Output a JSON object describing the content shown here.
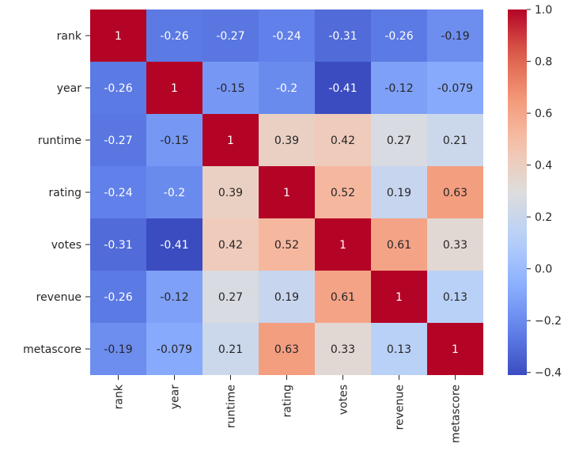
{
  "chart_data": {
    "type": "heatmap",
    "title": "",
    "xlabel": "",
    "ylabel": "",
    "labels": [
      "rank",
      "year",
      "runtime",
      "rating",
      "votes",
      "revenue",
      "metascore"
    ],
    "matrix": [
      [
        1,
        -0.26,
        -0.27,
        -0.24,
        -0.31,
        -0.26,
        -0.19
      ],
      [
        -0.26,
        1,
        -0.15,
        -0.2,
        -0.41,
        -0.12,
        -0.079
      ],
      [
        -0.27,
        -0.15,
        1,
        0.39,
        0.42,
        0.27,
        0.21
      ],
      [
        -0.24,
        -0.2,
        0.39,
        1,
        0.52,
        0.19,
        0.63
      ],
      [
        -0.31,
        -0.41,
        0.42,
        0.52,
        1,
        0.61,
        0.33
      ],
      [
        -0.26,
        -0.12,
        0.27,
        0.19,
        0.61,
        1,
        0.13
      ],
      [
        -0.19,
        -0.079,
        0.21,
        0.63,
        0.33,
        0.13,
        1
      ]
    ],
    "cell_labels": [
      [
        "1",
        "-0.26",
        "-0.27",
        "-0.24",
        "-0.31",
        "-0.26",
        "-0.19"
      ],
      [
        "-0.26",
        "1",
        "-0.15",
        "-0.2",
        "-0.41",
        "-0.12",
        "-0.079"
      ],
      [
        "-0.27",
        "-0.15",
        "1",
        "0.39",
        "0.42",
        "0.27",
        "0.21"
      ],
      [
        "-0.24",
        "-0.2",
        "0.39",
        "1",
        "0.52",
        "0.19",
        "0.63"
      ],
      [
        "-0.31",
        "-0.41",
        "0.42",
        "0.52",
        "1",
        "0.61",
        "0.33"
      ],
      [
        "-0.26",
        "-0.12",
        "0.27",
        "0.19",
        "0.61",
        "1",
        "0.13"
      ],
      [
        "-0.19",
        "-0.079",
        "0.21",
        "0.63",
        "0.33",
        "0.13",
        "1"
      ]
    ],
    "colormap": "coolwarm",
    "vmin": -0.41,
    "vmax": 1.0,
    "colorbar_ticks": [
      1.0,
      0.8,
      0.6,
      0.4,
      0.2,
      0.0,
      -0.2,
      -0.4
    ],
    "colorbar_tick_labels": [
      "1.0",
      "0.8",
      "0.6",
      "0.4",
      "0.2",
      "0.0",
      "−0.2",
      "−0.4"
    ],
    "grid": false,
    "legend": "colorbar-right"
  }
}
